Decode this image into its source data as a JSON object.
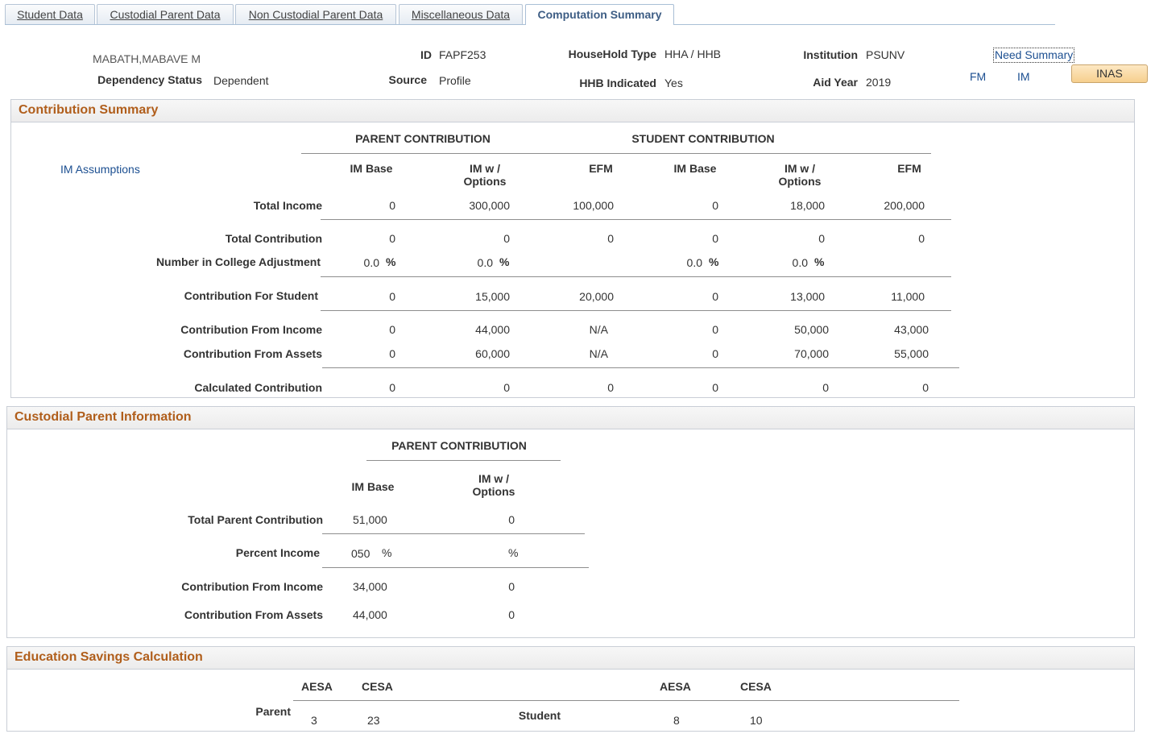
{
  "tabs": [
    {
      "label": "Student Data"
    },
    {
      "label": "Custodial Parent Data"
    },
    {
      "label": "Non Custodial Parent Data"
    },
    {
      "label": "Miscellaneous Data"
    },
    {
      "label": "Computation Summary",
      "active": true
    }
  ],
  "header": {
    "name": "MABATH,MABAVE M",
    "dependency_label": "Dependency Status",
    "dependency_value": "Dependent",
    "id_label": "ID",
    "id_value": "FAPF253",
    "source_label": "Source",
    "source_value": "Profile",
    "household_label": "HouseHold Type",
    "household_value": "HHA / HHB",
    "hhb_label": "HHB Indicated",
    "hhb_value": "Yes",
    "institution_label": "Institution",
    "institution_value": "PSUNV",
    "aidyear_label": "Aid Year",
    "aidyear_value": "2019",
    "need_summary_link": "Need Summary",
    "fm_link": "FM",
    "im_link": "IM",
    "inas_button": "INAS"
  },
  "contribution_summary": {
    "title": "Contribution Summary",
    "parent_group": "PARENT CONTRIBUTION",
    "student_group": "STUDENT CONTRIBUTION",
    "im_assumptions_link": "IM Assumptions",
    "columns": [
      {
        "l1": "IM Base",
        "l2": ""
      },
      {
        "l1": "IM w /",
        "l2": "Options"
      },
      {
        "l1": "EFM",
        "l2": ""
      },
      {
        "l1": "IM Base",
        "l2": ""
      },
      {
        "l1": "IM w /",
        "l2": "Options"
      },
      {
        "l1": "EFM",
        "l2": ""
      }
    ],
    "rows": {
      "total_income": {
        "label": "Total Income",
        "values": [
          "0",
          "300,000",
          "100,000",
          "0",
          "18,000",
          "200,000"
        ]
      },
      "total_contribution": {
        "label": "Total Contribution",
        "values": [
          "0",
          "0",
          "0",
          "0",
          "0",
          "0"
        ]
      },
      "nica": {
        "label": "Number in College Adjustment",
        "values": [
          "0.0",
          "0.0",
          "",
          "0.0",
          "0.0",
          ""
        ],
        "unit": "%"
      },
      "contribution_for_student": {
        "label": "Contribution For Student",
        "values": [
          "0",
          "15,000",
          "20,000",
          "0",
          "13,000",
          "11,000"
        ]
      },
      "contribution_from_income": {
        "label": "Contribution From Income",
        "values": [
          "0",
          "44,000",
          "N/A",
          "0",
          "50,000",
          "43,000"
        ]
      },
      "contribution_from_assets": {
        "label": "Contribution From Assets",
        "values": [
          "0",
          "60,000",
          "N/A",
          "0",
          "70,000",
          "55,000"
        ]
      },
      "calculated_contribution": {
        "label": "Calculated Contribution",
        "values": [
          "0",
          "0",
          "0",
          "0",
          "0",
          "0"
        ]
      }
    }
  },
  "custodial_parent": {
    "title": "Custodial Parent Information",
    "group": "PARENT CONTRIBUTION",
    "col1": "IM Base",
    "col2_l1": "IM w /",
    "col2_l2": "Options",
    "unit": "%",
    "rows": {
      "total_parent_contribution": {
        "label": "Total Parent Contribution",
        "v1": "51,000",
        "v2": "0"
      },
      "percent_income": {
        "label": "Percent Income",
        "v1": "050",
        "v2": ""
      },
      "contribution_from_income": {
        "label": "Contribution From Income",
        "v1": "34,000",
        "v2": "0"
      },
      "contribution_from_assets": {
        "label": "Contribution From Assets",
        "v1": "44,000",
        "v2": "0"
      }
    }
  },
  "education_savings": {
    "title": "Education Savings Calculation",
    "aesa": "AESA",
    "cesa": "CESA",
    "parent_label": "Parent",
    "parent_aesa": "3",
    "parent_cesa": "23",
    "student_label": "Student",
    "student_aesa": "8",
    "student_cesa": "10"
  }
}
